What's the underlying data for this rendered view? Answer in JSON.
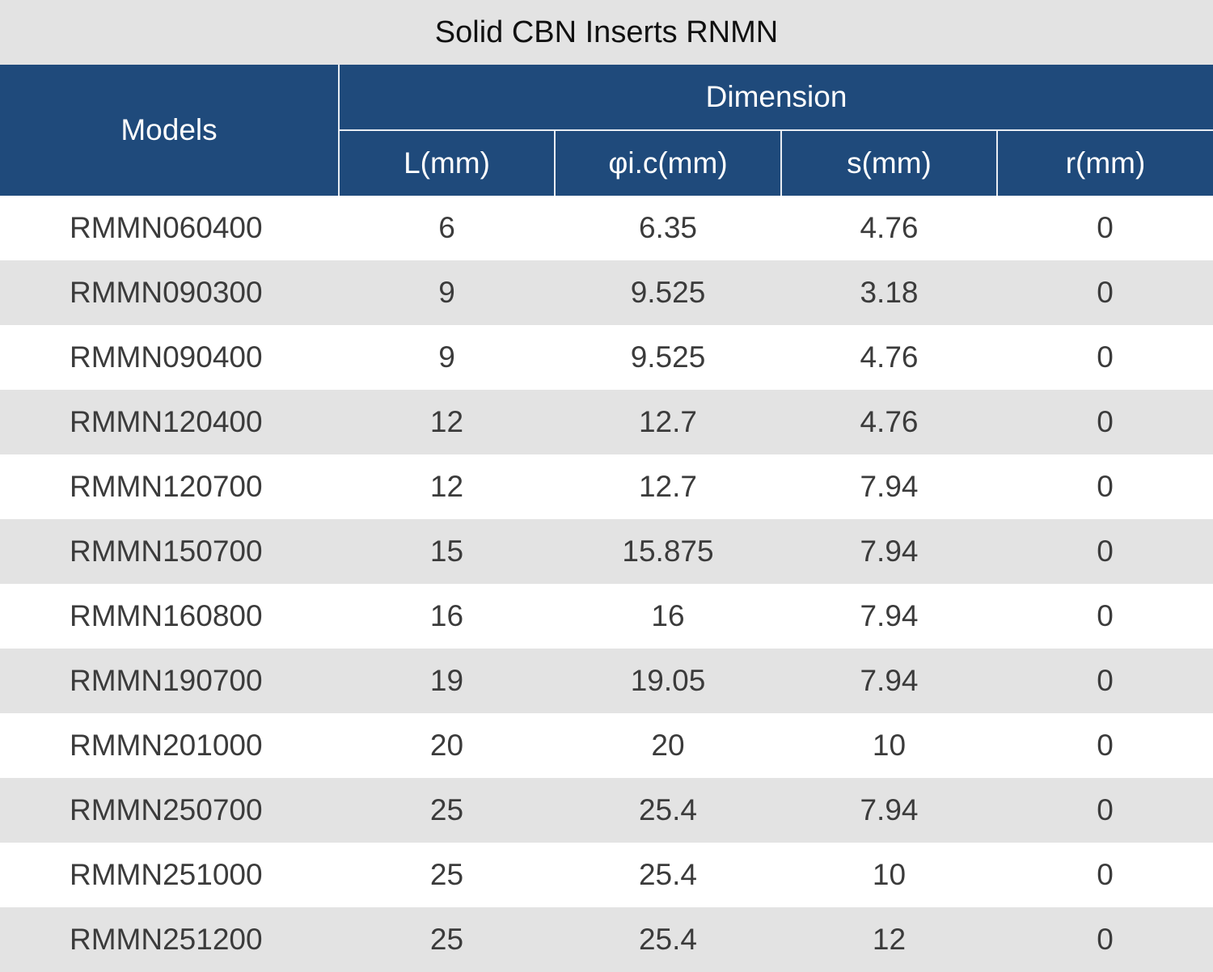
{
  "title": "Solid CBN Inserts RNMN",
  "header": {
    "models": "Models",
    "dimension": "Dimension",
    "columns": [
      "L(mm)",
      "φi.c(mm)",
      "s(mm)",
      "r(mm)"
    ]
  },
  "colors": {
    "header_bg": "#1f4a7b",
    "title_bg": "#e3e3e3",
    "stripe_bg": "#e3e3e3"
  },
  "rows": [
    {
      "model": "RMMN060400",
      "L": "6",
      "ic": "6.35",
      "s": "4.76",
      "r": "0"
    },
    {
      "model": "RMMN090300",
      "L": "9",
      "ic": "9.525",
      "s": "3.18",
      "r": "0"
    },
    {
      "model": "RMMN090400",
      "L": "9",
      "ic": "9.525",
      "s": "4.76",
      "r": "0"
    },
    {
      "model": "RMMN120400",
      "L": "12",
      "ic": "12.7",
      "s": "4.76",
      "r": "0"
    },
    {
      "model": "RMMN120700",
      "L": "12",
      "ic": "12.7",
      "s": "7.94",
      "r": "0"
    },
    {
      "model": "RMMN150700",
      "L": "15",
      "ic": "15.875",
      "s": "7.94",
      "r": "0"
    },
    {
      "model": "RMMN160800",
      "L": "16",
      "ic": "16",
      "s": "7.94",
      "r": "0"
    },
    {
      "model": "RMMN190700",
      "L": "19",
      "ic": "19.05",
      "s": "7.94",
      "r": "0"
    },
    {
      "model": "RMMN201000",
      "L": "20",
      "ic": "20",
      "s": "10",
      "r": "0"
    },
    {
      "model": "RMMN250700",
      "L": "25",
      "ic": "25.4",
      "s": "7.94",
      "r": "0"
    },
    {
      "model": "RMMN251000",
      "L": "25",
      "ic": "25.4",
      "s": "10",
      "r": "0"
    },
    {
      "model": "RMMN251200",
      "L": "25",
      "ic": "25.4",
      "s": "12",
      "r": "0"
    }
  ]
}
